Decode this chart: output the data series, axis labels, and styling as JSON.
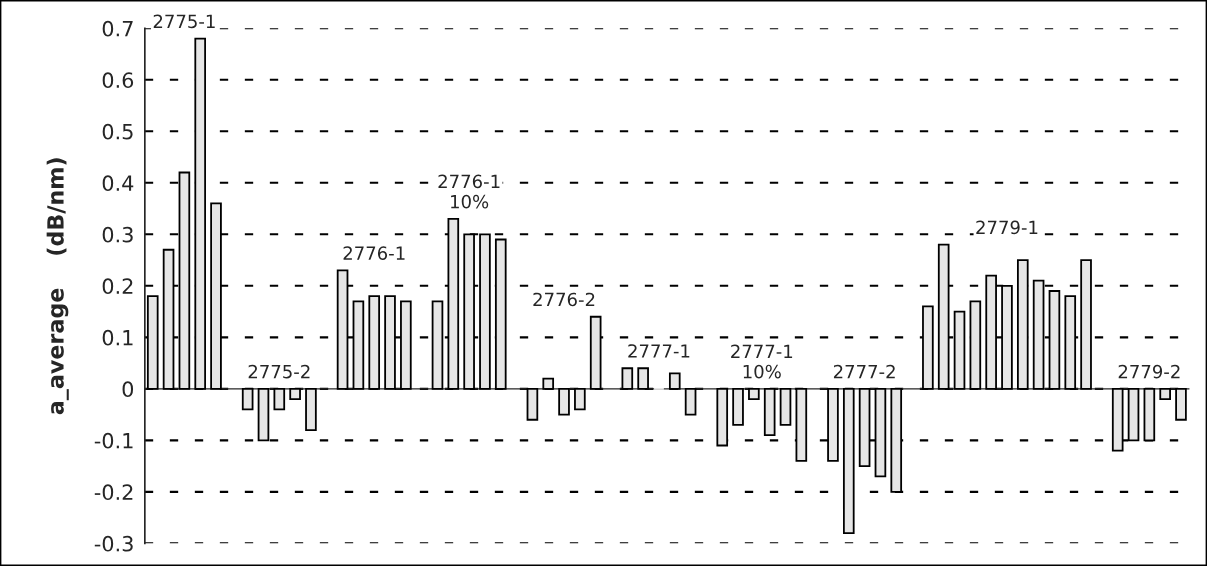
{
  "chart_data": {
    "type": "bar",
    "ylabel": "a_average    (dB/nm)",
    "categories": [
      null,
      null,
      null,
      null,
      null,
      null,
      null,
      null,
      null,
      null,
      null,
      null,
      null,
      null,
      null,
      null,
      null,
      null,
      null,
      null,
      null,
      null,
      null,
      null,
      null,
      null,
      null,
      null,
      null,
      null,
      null,
      null,
      null,
      null,
      null,
      null,
      null,
      null,
      null,
      null,
      null,
      null,
      null,
      null,
      null,
      null,
      null,
      null,
      null,
      null,
      null,
      null,
      null,
      null,
      null,
      null,
      null,
      null,
      null,
      null,
      null,
      null,
      null,
      null,
      null,
      null
    ],
    "values": [
      0.18,
      0.27,
      0.42,
      0.68,
      0.36,
      null,
      -0.04,
      -0.1,
      -0.04,
      -0.02,
      -0.08,
      null,
      0.23,
      0.17,
      0.18,
      0.18,
      0.17,
      null,
      0.17,
      0.33,
      0.3,
      0.3,
      0.29,
      null,
      -0.06,
      0.02,
      -0.05,
      -0.04,
      0.14,
      null,
      0.04,
      0.04,
      0,
      0.03,
      -0.05,
      null,
      -0.11,
      -0.07,
      -0.02,
      -0.09,
      -0.07,
      -0.14,
      null,
      -0.14,
      -0.28,
      -0.15,
      -0.17,
      -0.2,
      null,
      0.16,
      0.28,
      0.15,
      0.17,
      0.22,
      0.2,
      0.25,
      0.21,
      0.19,
      0.18,
      0.25,
      null,
      -0.12,
      -0.1,
      -0.1,
      -0.02,
      -0.06
    ],
    "color": "#e6e6e6",
    "ylim": [
      -0.3,
      0.7
    ],
    "yticks": [
      {
        "value": -0.3,
        "label": "-0.3"
      },
      {
        "value": -0.2,
        "label": "-0.2"
      },
      {
        "value": -0.1,
        "label": "-0.1"
      },
      0,
      0.1,
      0.2,
      0.3,
      0.4,
      0.5,
      0.6,
      0.7
    ],
    "grid": "y",
    "line_style": "dashed",
    "annotations": [
      "2775-1",
      "2775-2",
      "2776-1",
      "2776-1\n10%",
      "2776-2",
      "2777-1",
      "2777-1\n10%",
      "2777-2",
      "2779-1",
      "2779-2"
    ]
  }
}
